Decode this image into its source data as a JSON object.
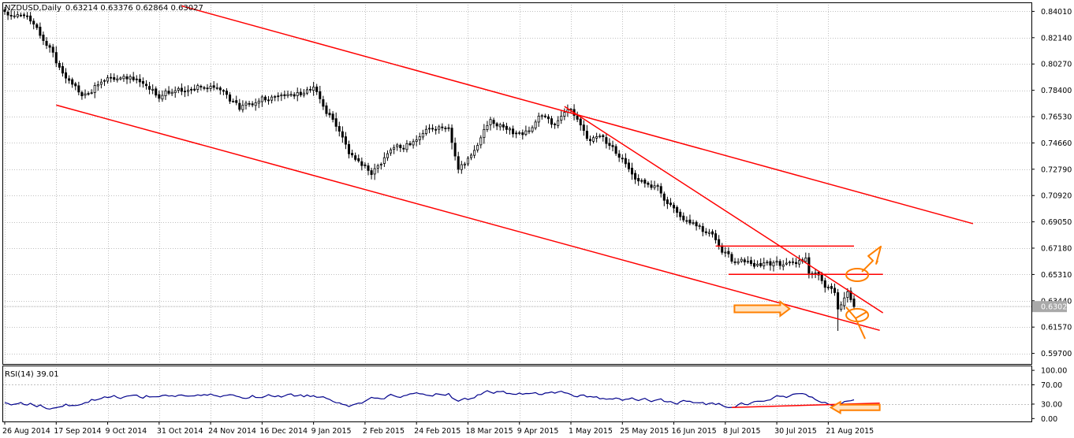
{
  "window": {
    "title": "NZDUSD,Daily",
    "ohlc": "0.63214 0.63376 0.62864 0.63027",
    "last_price": "0.63027"
  },
  "chart_data": [
    {
      "type": "candlestick",
      "symbol": "NZDUSD",
      "timeframe": "Daily",
      "ylim": [
        0.5895,
        0.8465
      ],
      "y_ticks": [
        "0.84010",
        "0.82140",
        "0.80270",
        "0.78400",
        "0.76530",
        "0.74660",
        "0.72790",
        "0.70920",
        "0.69050",
        "0.67180",
        "0.65310",
        "0.63440",
        "0.61570",
        "0.59700"
      ],
      "x_ticks": [
        "26 Aug 2014",
        "17 Sep 2014",
        "9 Oct 2014",
        "31 Oct 2014",
        "24 Nov 2014",
        "16 Dec 2014",
        "9 Jan 2015",
        "2 Feb 2015",
        "24 Feb 2015",
        "18 Mar 2015",
        "9 Apr 2015",
        "1 May 2015",
        "25 May 2015",
        "16 Jun 2015",
        "8 Jul 2015",
        "30 Jul 2015",
        "21 Aug 2015"
      ],
      "grid": true,
      "close_anchors": [
        {
          "date": "2014-08-26",
          "close": 0.84
        },
        {
          "date": "2014-09-05",
          "close": 0.832
        },
        {
          "date": "2014-09-15",
          "close": 0.813
        },
        {
          "date": "2014-09-22",
          "close": 0.79
        },
        {
          "date": "2014-09-29",
          "close": 0.78
        },
        {
          "date": "2014-10-09",
          "close": 0.794
        },
        {
          "date": "2014-10-20",
          "close": 0.793
        },
        {
          "date": "2014-10-31",
          "close": 0.78
        },
        {
          "date": "2014-11-10",
          "close": 0.785
        },
        {
          "date": "2014-11-24",
          "close": 0.788
        },
        {
          "date": "2014-12-05",
          "close": 0.77
        },
        {
          "date": "2014-12-16",
          "close": 0.778
        },
        {
          "date": "2014-12-26",
          "close": 0.78
        },
        {
          "date": "2015-01-07",
          "close": 0.783
        },
        {
          "date": "2015-01-14",
          "close": 0.765
        },
        {
          "date": "2015-01-22",
          "close": 0.74
        },
        {
          "date": "2015-02-02",
          "close": 0.725
        },
        {
          "date": "2015-02-10",
          "close": 0.74
        },
        {
          "date": "2015-02-20",
          "close": 0.75
        },
        {
          "date": "2015-02-27",
          "close": 0.756
        },
        {
          "date": "2015-03-06",
          "close": 0.758
        },
        {
          "date": "2015-03-11",
          "close": 0.725
        },
        {
          "date": "2015-03-18",
          "close": 0.743
        },
        {
          "date": "2015-03-25",
          "close": 0.765
        },
        {
          "date": "2015-04-01",
          "close": 0.755
        },
        {
          "date": "2015-04-08",
          "close": 0.75
        },
        {
          "date": "2015-04-15",
          "close": 0.765
        },
        {
          "date": "2015-04-22",
          "close": 0.76
        },
        {
          "date": "2015-04-29",
          "close": 0.77
        },
        {
          "date": "2015-05-06",
          "close": 0.75
        },
        {
          "date": "2015-05-13",
          "close": 0.748
        },
        {
          "date": "2015-05-21",
          "close": 0.735
        },
        {
          "date": "2015-05-28",
          "close": 0.718
        },
        {
          "date": "2015-06-05",
          "close": 0.715
        },
        {
          "date": "2015-06-09",
          "close": 0.707
        },
        {
          "date": "2015-06-16",
          "close": 0.697
        },
        {
          "date": "2015-06-24",
          "close": 0.688
        },
        {
          "date": "2015-07-01",
          "close": 0.678
        },
        {
          "date": "2015-07-08",
          "close": 0.662
        },
        {
          "date": "2015-07-14",
          "close": 0.663
        },
        {
          "date": "2015-07-21",
          "close": 0.658
        },
        {
          "date": "2015-07-28",
          "close": 0.662
        },
        {
          "date": "2015-07-31",
          "close": 0.66
        },
        {
          "date": "2015-08-05",
          "close": 0.662
        },
        {
          "date": "2015-08-10",
          "close": 0.665
        },
        {
          "date": "2015-08-11",
          "close": 0.652
        },
        {
          "date": "2015-08-14",
          "close": 0.651
        },
        {
          "date": "2015-08-18",
          "close": 0.644
        },
        {
          "date": "2015-08-21",
          "close": 0.638
        },
        {
          "date": "2015-08-24",
          "close": 0.628
        },
        {
          "date": "2015-08-27",
          "close": 0.639
        },
        {
          "date": "2015-08-31",
          "close": 0.6303
        }
      ],
      "spike_low": {
        "date": "2015-08-24",
        "low": 0.613
      },
      "trendlines": [
        {
          "color": "#ff0000",
          "from": {
            "date": "2014-09-17",
            "price": 0.7735
          },
          "to": {
            "date": "2015-09-10",
            "price": 0.6134
          }
        },
        {
          "color": "#ff0000",
          "from": {
            "date": "2014-11-11",
            "price": 0.844
          },
          "to": {
            "date": "2015-10-21",
            "price": 0.6892
          }
        },
        {
          "color": "#ff0000",
          "from": {
            "date": "2015-04-27",
            "price": 0.7725
          },
          "to": {
            "date": "2015-09-11",
            "price": 0.6258
          }
        },
        {
          "color": "#ff0000",
          "from": {
            "date": "2015-07-01",
            "price": 0.6733
          },
          "to": {
            "date": "2015-08-31",
            "price": 0.6733
          }
        },
        {
          "color": "#ff0000",
          "from": {
            "date": "2015-07-07",
            "price": 0.6532
          },
          "to": {
            "date": "2015-09-11",
            "price": 0.6532
          }
        }
      ],
      "annotations": [
        {
          "shape": "arrow-right",
          "color": "#ff7f00",
          "at": {
            "date": "2015-08-03",
            "price": 0.6287
          }
        },
        {
          "shape": "ellipse",
          "color": "#ff7f00",
          "at": {
            "date": "2015-09-01",
            "price": 0.6528
          }
        },
        {
          "shape": "ellipse",
          "color": "#ff7f00",
          "at": {
            "date": "2015-09-01",
            "price": 0.6242
          }
        },
        {
          "shape": "pointer-up",
          "color": "#ff7f00",
          "at": {
            "date": "2015-09-01",
            "price": 0.6528
          }
        },
        {
          "shape": "pointer-down",
          "color": "#ff7f00",
          "at": {
            "date": "2015-09-01",
            "price": 0.6242
          }
        }
      ]
    },
    {
      "type": "line",
      "title": "RSI(14) 39.01",
      "ylim": [
        -6,
        110
      ],
      "y_ticks": [
        "100.00",
        "70.00",
        "30.00",
        "0.00"
      ],
      "levels": [
        30,
        70
      ],
      "series_color": "#00008b",
      "value_anchors": [
        {
          "date": "2014-08-26",
          "value": 33
        },
        {
          "date": "2014-09-05",
          "value": 30
        },
        {
          "date": "2014-09-17",
          "value": 22
        },
        {
          "date": "2014-10-09",
          "value": 45
        },
        {
          "date": "2014-11-11",
          "value": 48
        },
        {
          "date": "2014-12-10",
          "value": 46
        },
        {
          "date": "2015-01-07",
          "value": 48
        },
        {
          "date": "2015-01-22",
          "value": 30
        },
        {
          "date": "2015-02-10",
          "value": 48
        },
        {
          "date": "2015-03-06",
          "value": 50
        },
        {
          "date": "2015-03-11",
          "value": 32
        },
        {
          "date": "2015-03-25",
          "value": 56
        },
        {
          "date": "2015-04-08",
          "value": 50
        },
        {
          "date": "2015-04-22",
          "value": 55
        },
        {
          "date": "2015-05-13",
          "value": 42
        },
        {
          "date": "2015-06-05",
          "value": 37
        },
        {
          "date": "2015-06-24",
          "value": 32
        },
        {
          "date": "2015-07-08",
          "value": 27
        },
        {
          "date": "2015-07-28",
          "value": 44
        },
        {
          "date": "2015-08-10",
          "value": 50
        },
        {
          "date": "2015-08-14",
          "value": 38
        },
        {
          "date": "2015-08-24",
          "value": 30
        },
        {
          "date": "2015-08-31",
          "value": 39
        }
      ],
      "annotations": [
        {
          "shape": "trendline",
          "color": "#ff0000",
          "from": {
            "date": "2015-07-08",
            "value": 23
          },
          "to": {
            "date": "2015-09-10",
            "value": 32
          }
        },
        {
          "shape": "arrow-left",
          "color": "#ff7f00",
          "at": {
            "date": "2015-09-10",
            "value": 23
          }
        }
      ]
    }
  ]
}
